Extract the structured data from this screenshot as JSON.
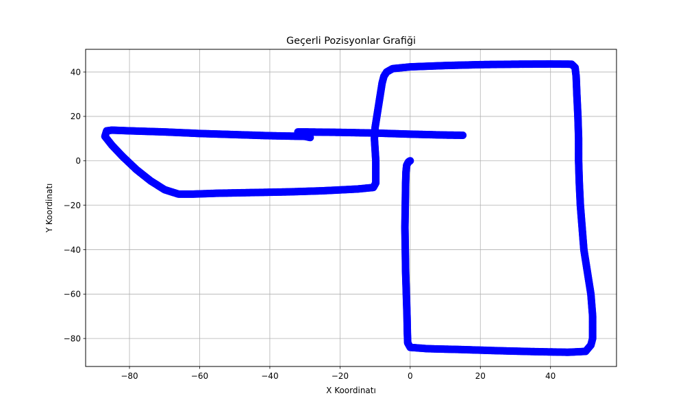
{
  "chart_data": {
    "type": "scatter",
    "title": "Geçerli Pozisyonlar Grafiği",
    "xlabel": "X Koordinatı",
    "ylabel": "Y Koordinatı",
    "xlim": [
      -92.5,
      58.8
    ],
    "ylim": [
      -92.6,
      50.2
    ],
    "xticks": [
      -80,
      -60,
      -40,
      -20,
      0,
      20,
      40
    ],
    "yticks": [
      -80,
      -60,
      -40,
      -20,
      0,
      20,
      40
    ],
    "grid": true,
    "marker_color": "#0000ff",
    "series": [
      {
        "points": [
          [
            0.0,
            0.0
          ],
          [
            -0.5,
            -0.5
          ],
          [
            -1.0,
            -2.0
          ],
          [
            -1.2,
            -5.0
          ],
          [
            -1.3,
            -10.0
          ],
          [
            -1.4,
            -20.0
          ],
          [
            -1.5,
            -30.0
          ],
          [
            -1.4,
            -40.0
          ],
          [
            -1.3,
            -50.0
          ],
          [
            -1.1,
            -60.0
          ],
          [
            -0.9,
            -70.0
          ],
          [
            -0.8,
            -78.0
          ],
          [
            -0.7,
            -82.0
          ],
          [
            0.0,
            -84.0
          ],
          [
            5.0,
            -84.6
          ],
          [
            15.0,
            -85.0
          ],
          [
            25.0,
            -85.5
          ],
          [
            35.0,
            -85.9
          ],
          [
            45.0,
            -86.2
          ],
          [
            50.0,
            -85.8
          ],
          [
            51.5,
            -83.0
          ],
          [
            52.0,
            -80.0
          ],
          [
            52.0,
            -70.0
          ],
          [
            51.5,
            -60.0
          ],
          [
            50.5,
            -50.0
          ],
          [
            49.5,
            -40.0
          ],
          [
            49.0,
            -30.0
          ],
          [
            48.5,
            -20.0
          ],
          [
            48.2,
            -10.0
          ],
          [
            48.0,
            0.0
          ],
          [
            48.0,
            10.0
          ],
          [
            47.8,
            20.0
          ],
          [
            47.5,
            30.0
          ],
          [
            47.3,
            38.0
          ],
          [
            47.0,
            42.0
          ],
          [
            46.0,
            43.5
          ],
          [
            40.0,
            43.6
          ],
          [
            30.0,
            43.5
          ],
          [
            20.0,
            43.3
          ],
          [
            10.0,
            42.9
          ],
          [
            0.0,
            42.3
          ],
          [
            -5.0,
            41.5
          ],
          [
            -6.7,
            40.0
          ],
          [
            -7.5,
            38.0
          ],
          [
            -8.0,
            35.0
          ],
          [
            -8.5,
            30.0
          ],
          [
            -9.0,
            25.0
          ],
          [
            -9.5,
            20.0
          ],
          [
            -10.0,
            15.0
          ],
          [
            -10.2,
            10.0
          ],
          [
            -10.0,
            5.0
          ],
          [
            -9.8,
            0.0
          ],
          [
            -9.8,
            -5.0
          ],
          [
            -9.8,
            -10.0
          ],
          [
            -10.5,
            -12.0
          ],
          [
            -15.0,
            -12.7
          ],
          [
            -25.0,
            -13.5
          ],
          [
            -35.0,
            -14.0
          ],
          [
            -45.0,
            -14.3
          ],
          [
            -55.0,
            -14.6
          ],
          [
            -62.0,
            -15.0
          ],
          [
            -66.0,
            -15.0
          ],
          [
            -70.0,
            -13.0
          ],
          [
            -74.0,
            -9.0
          ],
          [
            -78.0,
            -4.0
          ],
          [
            -82.0,
            2.0
          ],
          [
            -85.0,
            7.0
          ],
          [
            -87.0,
            11.0
          ],
          [
            -86.5,
            13.5
          ],
          [
            -85.0,
            13.8
          ],
          [
            -80.0,
            13.5
          ],
          [
            -70.0,
            13.0
          ],
          [
            -60.0,
            12.3
          ],
          [
            -50.0,
            11.8
          ],
          [
            -40.0,
            11.3
          ],
          [
            -30.0,
            11.0
          ],
          [
            -28.5,
            10.5
          ],
          [
            -32.0,
            13.0
          ],
          [
            -30.0,
            13.0
          ],
          [
            -20.0,
            12.8
          ],
          [
            -10.0,
            12.5
          ],
          [
            0.0,
            12.0
          ],
          [
            10.0,
            11.6
          ],
          [
            15.0,
            11.5
          ]
        ]
      }
    ]
  }
}
